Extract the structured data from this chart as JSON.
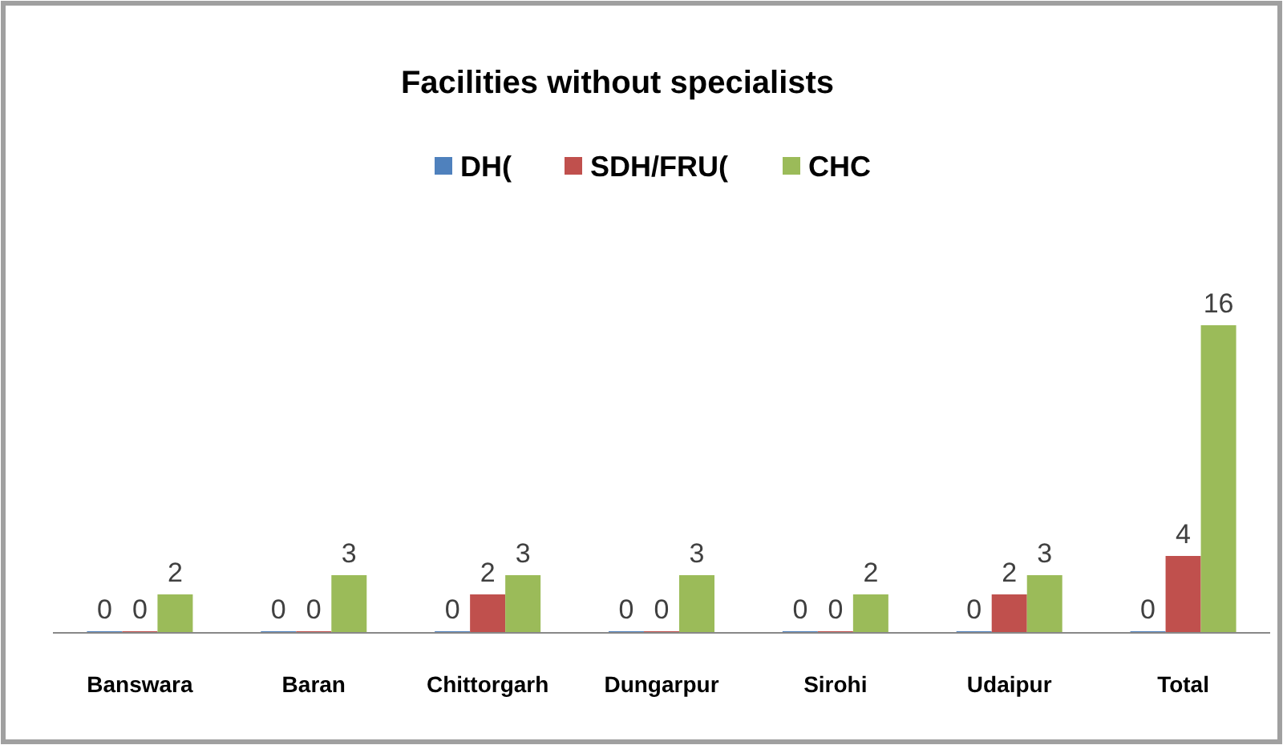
{
  "chart_data": {
    "type": "bar",
    "title": "Facilities without specialists",
    "categories": [
      "Banswara",
      "Baran",
      "Chittorgarh",
      "Dungarpur",
      "Sirohi",
      "Udaipur",
      "Total"
    ],
    "series": [
      {
        "name": "DH(",
        "color": "#4f81bd",
        "values": [
          0,
          0,
          0,
          0,
          0,
          0,
          0
        ]
      },
      {
        "name": "SDH/FRU(",
        "color": "#c0504d",
        "values": [
          0,
          0,
          2,
          0,
          0,
          2,
          4
        ]
      },
      {
        "name": "CHC",
        "color": "#9bbb59",
        "values": [
          2,
          3,
          3,
          3,
          2,
          3,
          16
        ]
      }
    ],
    "data_labels": true,
    "legend": "top",
    "grid": false
  }
}
